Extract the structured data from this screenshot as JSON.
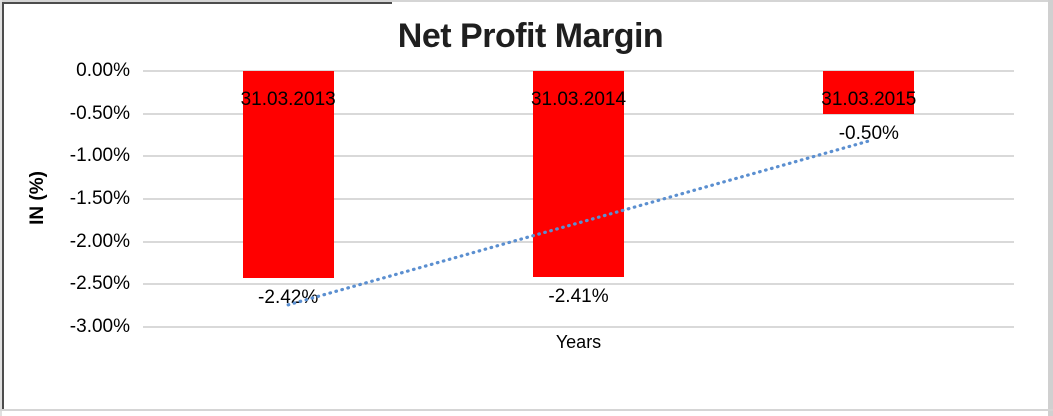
{
  "chart_data": {
    "type": "bar",
    "title": "Net Profit Margin",
    "xlabel": "Years",
    "ylabel": "IN (%)",
    "categories": [
      "31.03.2013",
      "31.03.2014",
      "31.03.2015"
    ],
    "values": [
      -2.42,
      -2.41,
      -0.5
    ],
    "value_labels": [
      "-2.42%",
      "-2.41%",
      "-0.50%"
    ],
    "yticks": [
      "0.00%",
      "-0.50%",
      "-1.00%",
      "-1.50%",
      "-2.00%",
      "-2.50%",
      "-3.00%"
    ],
    "ylim": [
      0,
      -3
    ],
    "grid": true,
    "legend": false,
    "bar_color": "#ff0000",
    "label_color": "#000000",
    "gridline_color": "#d9d9d9",
    "trendline": {
      "type": "linear",
      "style": "dotted",
      "color": "#5b8fd0",
      "endpoints_pct": [
        -2.74,
        -0.82
      ]
    }
  }
}
